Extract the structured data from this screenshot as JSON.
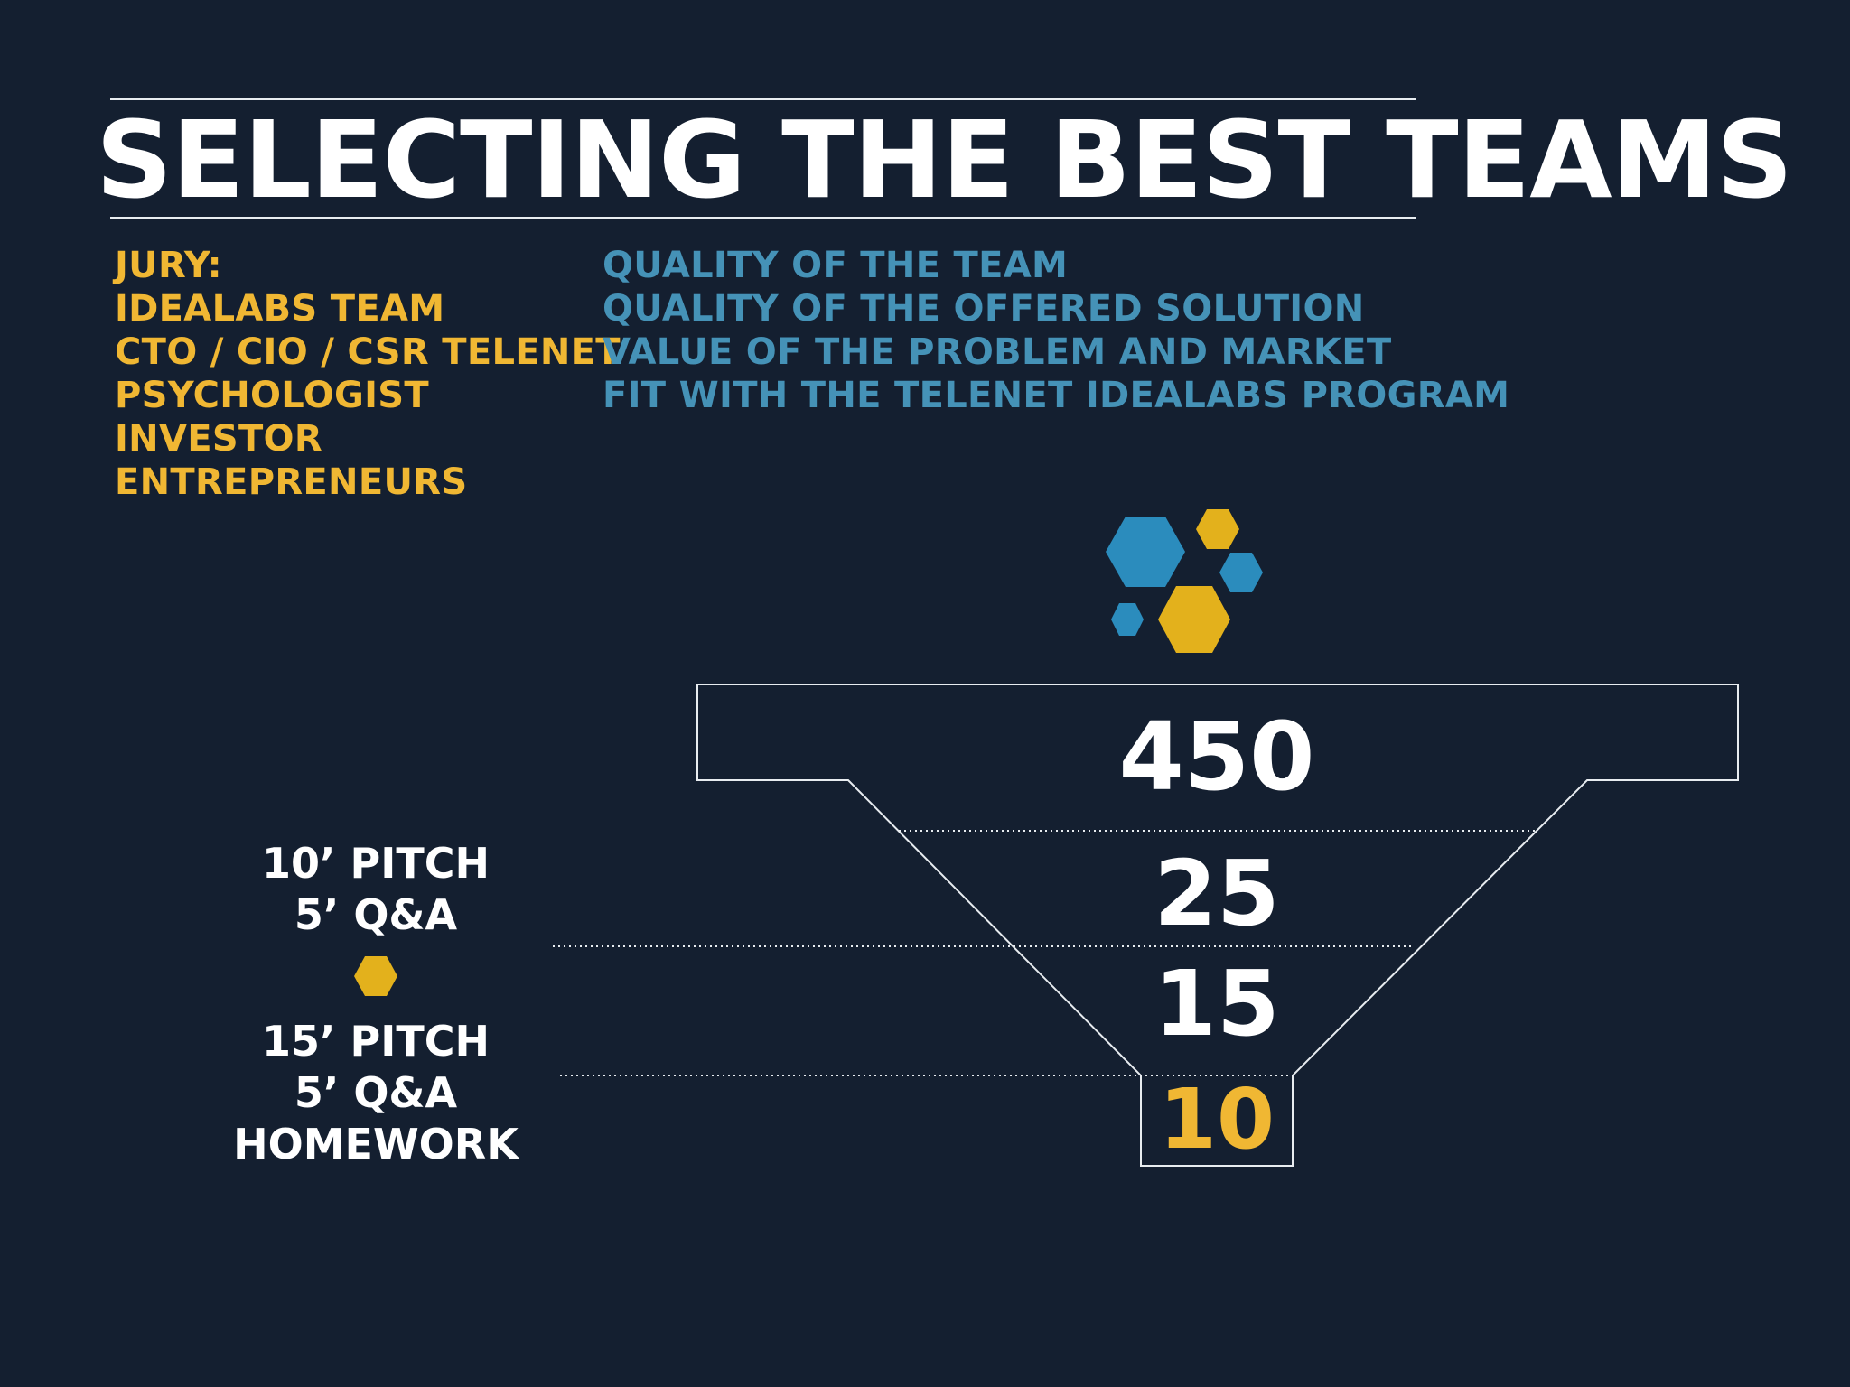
{
  "title": "SELECTING THE BEST TEAMS",
  "jury": [
    "JURY:",
    "IDEALABS TEAM",
    "CTO / CIO / CSR TELENET",
    "PSYCHOLOGIST",
    "INVESTOR",
    "ENTREPRENEURS"
  ],
  "criteria": [
    "QUALITY OF THE TEAM",
    "QUALITY OF THE OFFERED SOLUTION",
    "VALUE OF THE PROBLEM AND MARKET",
    "FIT WITH THE TELENET IDEALABS PROGRAM"
  ],
  "funnel": {
    "stages": [
      "450",
      "25",
      "15",
      "10"
    ]
  },
  "rounds": {
    "first": [
      "10’ PITCH",
      "5’ Q&A"
    ],
    "second": [
      "15’ PITCH",
      "5’ Q&A",
      "HOMEWORK"
    ]
  },
  "colors": {
    "background": "#141f30",
    "white": "#ffffff",
    "yellow": "#f0b733",
    "gold": "#e3b11c",
    "blue": "#4592b7",
    "hex_blue": "#2b8cbd"
  }
}
